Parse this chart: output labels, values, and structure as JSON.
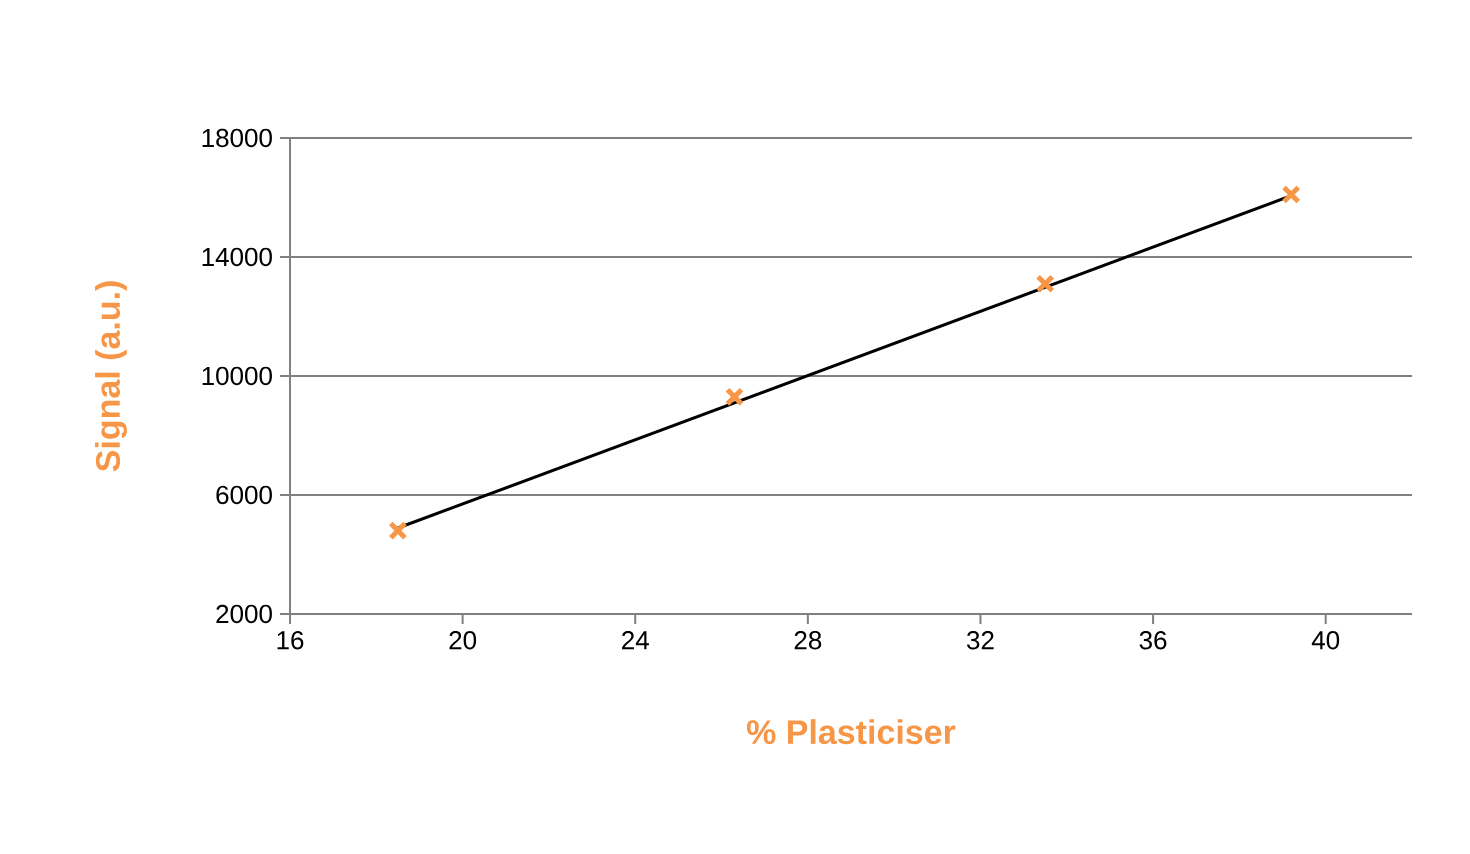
{
  "chart_data": {
    "type": "scatter",
    "xlabel": "% Plasticiser",
    "ylabel": "Signal (a.u.)",
    "xlim": [
      16,
      42
    ],
    "xticks": [
      16,
      20,
      24,
      28,
      32,
      36,
      40
    ],
    "ylim": [
      2000,
      18000
    ],
    "yticks": [
      2000,
      6000,
      10000,
      14000,
      18000
    ],
    "grid": "y",
    "marker": "cross",
    "series": [
      {
        "color": "#f79646",
        "x": [
          18.5,
          26.3,
          33.5,
          39.2
        ],
        "values": [
          4800,
          9300,
          13100,
          16100
        ]
      },
      {
        "type": "line",
        "color": "#000000",
        "marker": "none",
        "x": [
          18.5,
          39.2
        ],
        "values": [
          4890,
          16060
        ]
      }
    ]
  }
}
